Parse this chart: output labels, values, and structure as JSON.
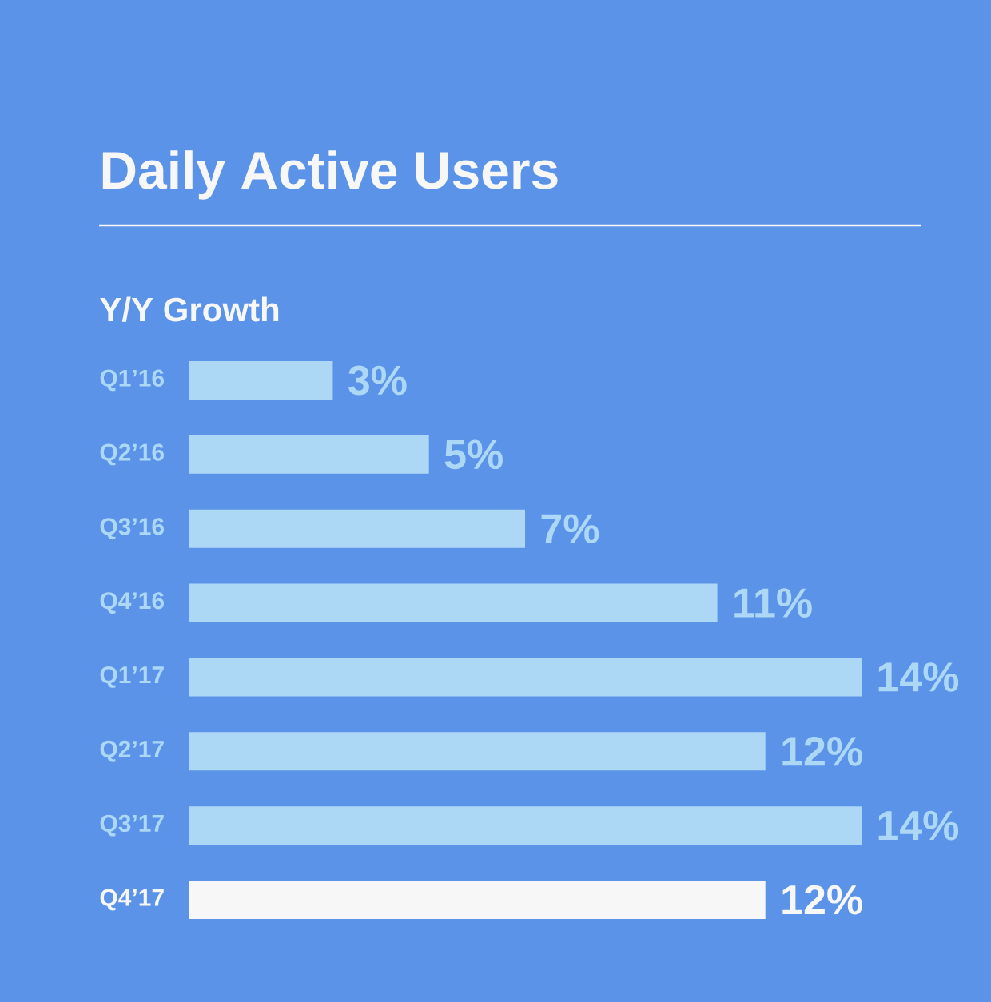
{
  "chart_data": {
    "type": "bar",
    "orientation": "horizontal",
    "title": "Daily Active Users",
    "subtitle": "Y/Y Growth",
    "categories": [
      "Q1’16",
      "Q2’16",
      "Q3’16",
      "Q4’16",
      "Q1’17",
      "Q2’17",
      "Q3’17",
      "Q4’17"
    ],
    "values": [
      3,
      5,
      7,
      11,
      14,
      12,
      14,
      12
    ],
    "value_labels": [
      "3%",
      "5%",
      "7%",
      "11%",
      "14%",
      "12%",
      "14%",
      "12%"
    ],
    "colors": [
      "#acd8f6",
      "#acd8f6",
      "#acd8f6",
      "#acd8f6",
      "#acd8f6",
      "#acd8f6",
      "#acd8f6",
      "#f7f7f7"
    ],
    "tick_labels": "y"
  }
}
